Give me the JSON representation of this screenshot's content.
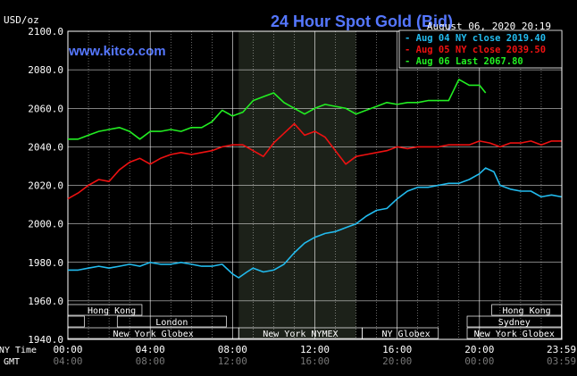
{
  "chart_data": {
    "type": "line",
    "title": "24 Hour Spot Gold (Bid)",
    "ylabel": "USD/oz",
    "date_text": "August 06, 2020 20:19",
    "watermark": "www.kitco.com",
    "ylim": [
      1940,
      2100
    ],
    "yticks": [
      "2100.0",
      "2080.0",
      "2060.0",
      "2040.0",
      "2020.0",
      "2000.0",
      "1980.0",
      "1960.0",
      "1940.0"
    ],
    "ytick_values": [
      2100,
      2080,
      2060,
      2040,
      2020,
      2000,
      1980,
      1960,
      1940
    ],
    "xlim": [
      0,
      24
    ],
    "x_row_labels": {
      "ny": "NY Time",
      "gmt": "GMT"
    },
    "xticks_ny": [
      "00:00",
      "04:00",
      "08:00",
      "12:00",
      "16:00",
      "20:00",
      "23:59"
    ],
    "xticks_gmt": [
      "04:00",
      "08:00",
      "12:00",
      "16:00",
      "20:00",
      "00:00",
      "03:59"
    ],
    "xtick_hours": [
      0,
      4,
      8,
      12,
      16,
      20,
      23.98
    ],
    "highlight_band_hours": [
      8.3,
      14.0
    ],
    "legend": [
      {
        "label": "Aug 04 NY close 2019.40",
        "color": "#22bbee"
      },
      {
        "label": "Aug 05 NY close 2039.50",
        "color": "#ee1111"
      },
      {
        "label": "Aug 06 Last 2067.80",
        "color": "#22ee22"
      }
    ],
    "series": [
      {
        "name": "Aug 04",
        "color": "#22bbee",
        "x": [
          0,
          0.5,
          1,
          1.5,
          2,
          2.5,
          3,
          3.5,
          4,
          4.5,
          5,
          5.5,
          6,
          6.5,
          7,
          7.5,
          8,
          8.3,
          8.7,
          9,
          9.5,
          10,
          10.5,
          11,
          11.5,
          12,
          12.5,
          13,
          13.5,
          14,
          14.5,
          15,
          15.5,
          16,
          16.5,
          17,
          17.5,
          18,
          18.5,
          19,
          19.5,
          20,
          20.3,
          20.7,
          21,
          21.5,
          22,
          22.5,
          23,
          23.5,
          23.98
        ],
        "y": [
          1976,
          1976,
          1977,
          1978,
          1977,
          1978,
          1979,
          1978,
          1980,
          1979,
          1979,
          1980,
          1979,
          1978,
          1978,
          1979,
          1974,
          1972,
          1975,
          1977,
          1975,
          1976,
          1979,
          1985,
          1990,
          1993,
          1995,
          1996,
          1998,
          2000,
          2004,
          2007,
          2008,
          2013,
          2017,
          2019,
          2019,
          2020,
          2021,
          2021,
          2023,
          2026,
          2029,
          2027,
          2020,
          2018,
          2017,
          2017,
          2014,
          2015,
          2014
        ]
      },
      {
        "name": "Aug 05",
        "color": "#ee1111",
        "x": [
          0,
          0.5,
          1,
          1.5,
          2,
          2.5,
          3,
          3.5,
          4,
          4.5,
          5,
          5.5,
          6,
          6.5,
          7,
          7.5,
          8,
          8.5,
          9,
          9.5,
          10,
          10.5,
          11,
          11.5,
          12,
          12.5,
          13,
          13.5,
          14,
          14.5,
          15,
          15.5,
          16,
          16.5,
          17,
          17.5,
          18,
          18.5,
          19,
          19.5,
          20,
          20.5,
          21,
          21.5,
          22,
          22.5,
          23,
          23.5,
          23.98
        ],
        "y": [
          2013,
          2016,
          2020,
          2023,
          2022,
          2028,
          2032,
          2034,
          2031,
          2034,
          2036,
          2037,
          2036,
          2037,
          2038,
          2040,
          2041,
          2041,
          2038,
          2035,
          2042,
          2047,
          2052,
          2046,
          2048,
          2045,
          2038,
          2031,
          2035,
          2036,
          2037,
          2038,
          2040,
          2039,
          2040,
          2040,
          2040,
          2041,
          2041,
          2041,
          2043,
          2042,
          2040,
          2042,
          2042,
          2043,
          2041,
          2043,
          2043
        ]
      },
      {
        "name": "Aug 06",
        "color": "#22ee22",
        "x": [
          0,
          0.5,
          1,
          1.5,
          2,
          2.5,
          3,
          3.5,
          4,
          4.5,
          5,
          5.5,
          6,
          6.5,
          7,
          7.5,
          8,
          8.5,
          9,
          9.5,
          10,
          10.5,
          11,
          11.5,
          12,
          12.5,
          13,
          13.5,
          14,
          14.5,
          15,
          15.5,
          16,
          16.5,
          17,
          17.5,
          18,
          18.5,
          19,
          19.5,
          20,
          20.3
        ],
        "y": [
          2044,
          2044,
          2046,
          2048,
          2049,
          2050,
          2048,
          2044,
          2048,
          2048,
          2049,
          2048,
          2050,
          2050,
          2053,
          2059,
          2056,
          2058,
          2064,
          2066,
          2068,
          2063,
          2060,
          2057,
          2060,
          2062,
          2061,
          2060,
          2057,
          2059,
          2061,
          2063,
          2062,
          2063,
          2063,
          2064,
          2064,
          2064,
          2075,
          2072,
          2072,
          2068
        ]
      }
    ],
    "market_sessions": [
      {
        "name": "Hong Kong",
        "start": 0,
        "end": 3.6,
        "row": 0,
        "centered": false
      },
      {
        "name": "",
        "start": 0,
        "end": 0.8,
        "row": 1,
        "centered": false
      },
      {
        "name": "London",
        "start": 2.4,
        "end": 7.7,
        "row": 1,
        "centered": true
      },
      {
        "name": "New York Globex",
        "start": 0,
        "end": 8.3,
        "row": 2,
        "centered": true
      },
      {
        "name": "New York NYMEX",
        "start": 8.3,
        "end": 14.3,
        "row": 2,
        "centered": true
      },
      {
        "name": "NY Globex",
        "start": 14.3,
        "end": 18.0,
        "row": 2,
        "centered": false
      },
      {
        "name": "Hong Kong",
        "start": 20.6,
        "end": 23.98,
        "row": 0,
        "centered": true
      },
      {
        "name": "Sydney",
        "start": 19.4,
        "end": 23.98,
        "row": 1,
        "centered": true
      },
      {
        "name": "New York Globex",
        "start": 19.4,
        "end": 23.98,
        "row": 2,
        "centered": true
      }
    ]
  }
}
